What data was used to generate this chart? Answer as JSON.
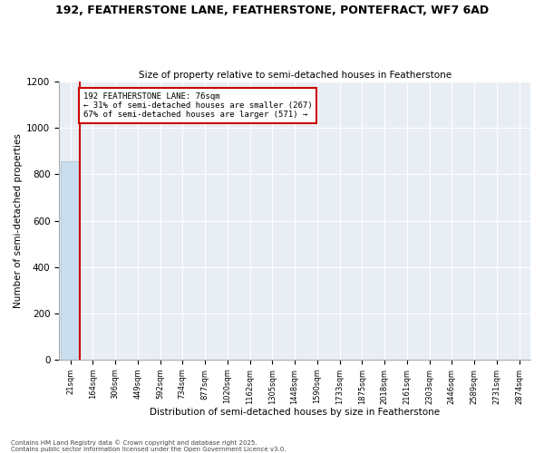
{
  "title1": "192, FEATHERSTONE LANE, FEATHERSTONE, PONTEFRACT, WF7 6AD",
  "title2": "Size of property relative to semi-detached houses in Featherstone",
  "xlabel": "Distribution of semi-detached houses by size in Featherstone",
  "ylabel": "Number of semi-detached properties",
  "bin_labels": [
    "21sqm",
    "164sqm",
    "306sqm",
    "449sqm",
    "592sqm",
    "734sqm",
    "877sqm",
    "1020sqm",
    "1162sqm",
    "1305sqm",
    "1448sqm",
    "1590sqm",
    "1733sqm",
    "1875sqm",
    "2018sqm",
    "2161sqm",
    "2303sqm",
    "2446sqm",
    "2589sqm",
    "2731sqm",
    "2874sqm"
  ],
  "bar_heights": [
    857,
    0,
    0,
    0,
    0,
    0,
    0,
    0,
    0,
    0,
    0,
    0,
    0,
    0,
    0,
    0,
    0,
    0,
    0,
    0,
    0
  ],
  "bar_color": "#c9dff0",
  "pct_smaller": 31,
  "count_smaller": 267,
  "pct_larger": 67,
  "count_larger": 571,
  "annotation_label": "192 FEATHERSTONE LANE: 76sqm",
  "ylim": [
    0,
    1200
  ],
  "yticks": [
    0,
    200,
    400,
    600,
    800,
    1000,
    1200
  ],
  "footer1": "Contains HM Land Registry data © Crown copyright and database right 2025.",
  "footer2": "Contains public sector information licensed under the Open Government Licence v3.0.",
  "red_line_color": "#cc0000",
  "background_color": "#e8eef4",
  "bar_edge_color": "#aabccc"
}
